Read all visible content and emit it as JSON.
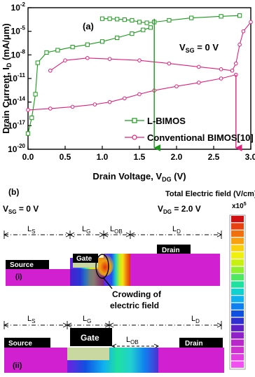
{
  "panel_a": {
    "label": "(a)",
    "annotation": "V_SG = 0 V",
    "chart_data": {
      "type": "line",
      "xlabel": "Drain Voltage, V_DG (V)",
      "ylabel": "Drain Current, I_D (mA/μm)",
      "xlim": [
        0,
        3.0
      ],
      "ylim_log10": [
        -20,
        -2
      ],
      "y_scale": "log",
      "x_ticks": [
        "0.0",
        "0.5",
        "1.0",
        "1.5",
        "2.0",
        "2.5",
        "3.0"
      ],
      "y_ticks": [
        {
          "base": "10",
          "exp": "-2"
        },
        {
          "base": "10",
          "exp": "-5"
        },
        {
          "base": "10",
          "exp": "-8"
        },
        {
          "base": "10",
          "exp": "-11"
        },
        {
          "base": "10",
          "exp": "-14"
        },
        {
          "base": "10",
          "exp": "-17"
        },
        {
          "base": "10",
          "exp": "-20"
        }
      ],
      "series": [
        {
          "name": "L-BIMOS",
          "color": "#1a9a1a",
          "marker": "square",
          "forward": [
            [
              0.0,
              1e-18
            ],
            [
              0.05,
              1e-16
            ],
            [
              0.1,
              1e-13
            ],
            [
              0.13,
              1e-09
            ],
            [
              0.25,
              2e-08
            ],
            [
              0.4,
              4e-08
            ],
            [
              0.6,
              1e-07
            ],
            [
              0.8,
              2e-07
            ],
            [
              1.0,
              5e-07
            ],
            [
              1.2,
              1.5e-06
            ],
            [
              1.4,
              5e-06
            ],
            [
              1.55,
              1.5e-05
            ],
            [
              1.65,
              3e-05
            ]
          ],
          "upper": [
            [
              1.0,
              0.0004
            ],
            [
              1.1,
              0.0004
            ],
            [
              1.2,
              0.00035
            ],
            [
              1.3,
              0.0003
            ],
            [
              1.4,
              0.00025
            ],
            [
              1.5,
              0.00015
            ],
            [
              1.6,
              0.00012
            ],
            [
              1.7,
              0.00015
            ],
            [
              1.9,
              0.00025
            ],
            [
              2.2,
              0.0005
            ],
            [
              2.6,
              0.0008
            ],
            [
              2.85,
              0.001
            ]
          ],
          "snapback_voltage": 1.7
        },
        {
          "name": "Conventional BIMOS[10]",
          "color": "#e0207a",
          "marker": "circle",
          "lower": [
            [
              0.0,
              1e-15
            ],
            [
              0.3,
              1.5e-15
            ],
            [
              0.6,
              2.5e-15
            ],
            [
              0.9,
              5e-15
            ],
            [
              1.1,
              1e-14
            ],
            [
              1.3,
              3e-14
            ],
            [
              1.5,
              1e-13
            ],
            [
              1.7,
              3e-13
            ],
            [
              2.0,
              1e-12
            ],
            [
              2.3,
              3e-12
            ],
            [
              2.6,
              1e-11
            ],
            [
              2.8,
              3e-11
            ]
          ],
          "upper": [
            [
              0.3,
              1e-10
            ],
            [
              0.5,
              2e-09
            ],
            [
              0.8,
              4e-09
            ],
            [
              1.1,
              3e-09
            ],
            [
              1.5,
              2e-09
            ],
            [
              1.9,
              8e-10
            ],
            [
              2.3,
              3e-10
            ],
            [
              2.6,
              1.5e-10
            ],
            [
              2.75,
              1e-10
            ],
            [
              2.8,
              8e-10
            ],
            [
              2.85,
              2e-07
            ],
            [
              2.9,
              1e-05
            ],
            [
              3.0,
              0.00015
            ]
          ],
          "snapback_voltage": 2.8
        }
      ],
      "legend": "lower-right"
    }
  },
  "panel_b": {
    "label": "(b)",
    "title": "Total Electric field (V/cm)",
    "scale_unit_base": "x10",
    "scale_unit_exp": "5",
    "vsg_label": "V_SG = 0 V",
    "vdg_label": "V_DG = 2.0 V",
    "structure_i": {
      "label": "(i)",
      "dims": [
        "L_S",
        "L_G",
        "L_OB",
        "L_D"
      ],
      "source": "Source",
      "gate": "Gate",
      "drain": "Drain",
      "annotation_line1": "Crowding of",
      "annotation_line2": "electric field"
    },
    "structure_ii": {
      "label": "(ii)",
      "dims": [
        "L_S",
        "L_G",
        "L_OB",
        "L_D"
      ],
      "source": "Source",
      "gate": "Gate",
      "drain": "Drain"
    },
    "colorbar_colors": [
      "#d01010",
      "#e84010",
      "#f07010",
      "#f8a010",
      "#f8d010",
      "#f0f010",
      "#c8f010",
      "#90f030",
      "#50e860",
      "#20e0a0",
      "#10d0d0",
      "#10b0f0",
      "#1080f0",
      "#1050e0",
      "#3030d0",
      "#6020c8",
      "#9020c8",
      "#b828c8",
      "#d030d0",
      "#e040e0",
      "#f050f0"
    ]
  }
}
